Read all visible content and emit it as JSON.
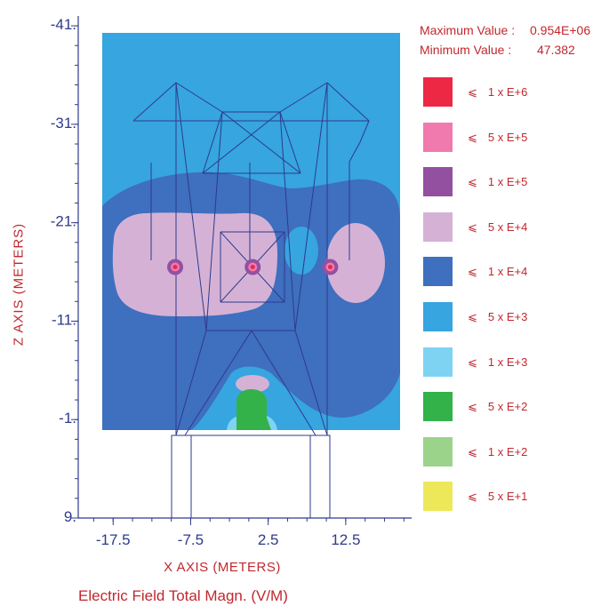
{
  "chart_data": {
    "type": "heatmap",
    "title": "Electric Field Total Magn. (V/M)",
    "xlabel": "X AXIS  (METERS)",
    "ylabel": "Z AXIS  (METERS)",
    "xlim": [
      -22,
      21
    ],
    "ylim": [
      9,
      -42
    ],
    "x_ticks": [
      "-17.5",
      "-7.5",
      "2.5",
      "12.5"
    ],
    "y_ticks": [
      "-41.",
      "-31.",
      "-21.",
      "-11.",
      "-1.",
      "9."
    ],
    "max_label": "Maximum Value :",
    "max_value": "0.954E+06",
    "min_label": "Minimum Value :",
    "min_value": "47.382",
    "legend": [
      {
        "symbol": "⩽",
        "label": "1 x E+6",
        "color": "#ed2845"
      },
      {
        "symbol": "⩽",
        "label": "5 x E+5",
        "color": "#f07aad"
      },
      {
        "symbol": "⩽",
        "label": "1 x E+5",
        "color": "#9350a0"
      },
      {
        "symbol": "⩽",
        "label": "5 x E+4",
        "color": "#d5b2d5"
      },
      {
        "symbol": "⩽",
        "label": "1 x E+4",
        "color": "#3f6fbf"
      },
      {
        "symbol": "⩽",
        "label": "5 x E+3",
        "color": "#36a5e0"
      },
      {
        "symbol": "⩽",
        "label": "1 x E+3",
        "color": "#7ed3f3"
      },
      {
        "symbol": "⩽",
        "label": "5 x E+2",
        "color": "#33b24a"
      },
      {
        "symbol": "⩽",
        "label": "1 x E+2",
        "color": "#9bd38a"
      },
      {
        "symbol": "⩽",
        "label": "5 x E+1",
        "color": "#ede85a"
      }
    ],
    "conductors": [
      {
        "x": -9.5,
        "z": -16.5
      },
      {
        "x": 0.5,
        "z": -16.5
      },
      {
        "x": 10.5,
        "z": -16.5
      }
    ],
    "grid": false
  }
}
